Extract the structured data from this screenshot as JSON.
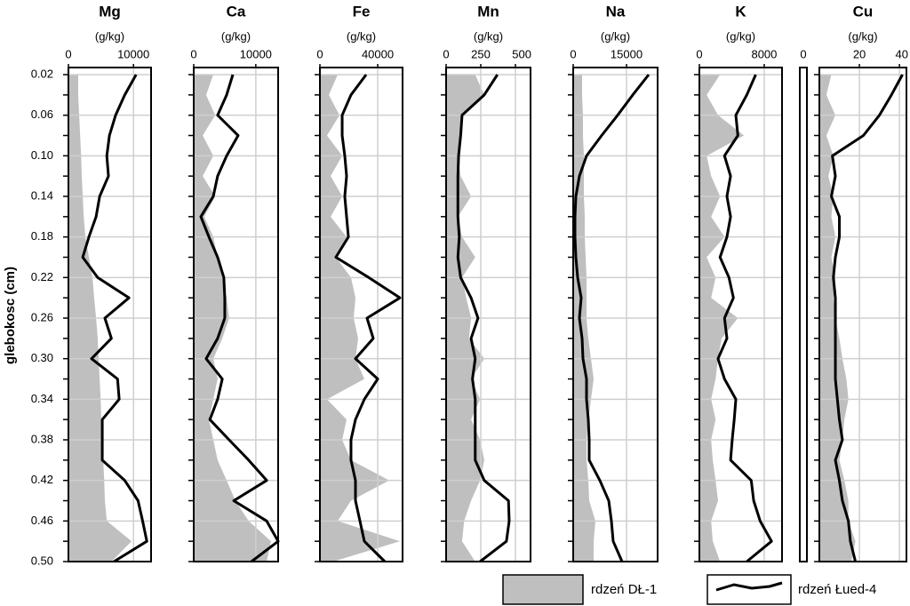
{
  "y_axis": {
    "label": "glebokosc (cm)",
    "ylim": [
      0.02,
      0.5
    ],
    "yticks": [
      0.02,
      0.06,
      {
        "value": 0.1,
        "label": "0.10"
      },
      0.14,
      0.18,
      0.22,
      0.26,
      {
        "value": 0.3,
        "label": "0.30"
      },
      0.34,
      0.38,
      0.42,
      0.46,
      {
        "value": 0.5,
        "label": "0.50"
      }
    ],
    "depths": [
      0.02,
      0.04,
      0.06,
      0.08,
      0.1,
      0.12,
      0.14,
      0.16,
      0.18,
      0.2,
      0.22,
      0.24,
      0.26,
      0.28,
      0.3,
      0.32,
      0.34,
      0.36,
      0.38,
      0.4,
      0.42,
      0.44,
      0.46,
      0.48,
      0.5
    ],
    "grid": true
  },
  "legend": [
    {
      "name": "rdzeń DŁ-1",
      "color": "#bfbfbf",
      "kind": "area"
    },
    {
      "name": "rdzeń Łued-4",
      "color": "#000000",
      "kind": "line"
    }
  ],
  "chart_data": [
    {
      "type": "line",
      "title": "Mg",
      "x_label": "(g/kg)",
      "xlim": [
        0,
        12700
      ],
      "xticks": [
        0,
        10000
      ],
      "area": [
        1500,
        1500,
        1650,
        1800,
        1950,
        2050,
        2200,
        2350,
        2600,
        3150,
        3700,
        3950,
        4250,
        4500,
        4650,
        4800,
        4950,
        5050,
        5200,
        5350,
        5500,
        5600,
        5900,
        9700,
        6600
      ],
      "line": [
        10400,
        8650,
        7250,
        6300,
        5900,
        6150,
        4800,
        4250,
        3150,
        2200,
        4500,
        9300,
        5600,
        6600,
        3550,
        7550,
        7800,
        5200,
        5200,
        5200,
        8650,
        10700,
        11400,
        12050,
        7000
      ]
    },
    {
      "type": "line",
      "title": "Ca",
      "x_label": "(g/kg)",
      "xlim": [
        0,
        13600
      ],
      "xticks": [
        0,
        10000
      ],
      "area": [
        3150,
        2000,
        3450,
        1450,
        3150,
        1450,
        3450,
        1700,
        3150,
        3850,
        4600,
        5300,
        5700,
        4600,
        3150,
        3850,
        3150,
        2450,
        3150,
        3850,
        5300,
        6700,
        8850,
        12450,
        11750
      ],
      "line": [
        6300,
        5300,
        3850,
        7150,
        5300,
        3850,
        3150,
        1150,
        2450,
        3850,
        4850,
        5000,
        5000,
        3850,
        2000,
        4600,
        3850,
        2600,
        5700,
        8850,
        11750,
        6450,
        11750,
        13600,
        9300
      ]
    },
    {
      "type": "line",
      "title": "Fe",
      "x_label": "(g/kg)",
      "xlim": [
        0,
        57200
      ],
      "xticks": [
        0,
        40000
      ],
      "area": [
        12300,
        6150,
        13550,
        4900,
        15400,
        7400,
        15400,
        7400,
        18450,
        11050,
        21500,
        24600,
        23350,
        26450,
        24600,
        30750,
        4900,
        18450,
        15400,
        21500,
        47950,
        21500,
        12300,
        55350,
        9200
      ],
      "line": [
        32000,
        21500,
        15400,
        15400,
        17200,
        18450,
        17200,
        18450,
        19700,
        11050,
        33800,
        55350,
        32600,
        36900,
        24600,
        40000,
        30750,
        24600,
        21500,
        21500,
        24600,
        24600,
        27700,
        30750,
        44900
      ]
    },
    {
      "type": "line",
      "title": "Mn",
      "x_label": "(g/kg)",
      "xlim": [
        0,
        609
      ],
      "xticks": [
        0,
        250,
        500
      ],
      "area": [
        210,
        275,
        115,
        105,
        85,
        105,
        180,
        85,
        115,
        210,
        115,
        145,
        180,
        165,
        275,
        180,
        245,
        180,
        245,
        275,
        245,
        180,
        130,
        115,
        210
      ],
      "line": [
        370,
        275,
        115,
        105,
        90,
        85,
        85,
        85,
        95,
        85,
        105,
        180,
        230,
        180,
        210,
        190,
        210,
        210,
        210,
        210,
        275,
        450,
        455,
        435,
        245
      ]
    },
    {
      "type": "line",
      "title": "Na",
      "x_label": "(g/kg)",
      "xlim": [
        0,
        23750
      ],
      "xticks": [
        0,
        15000
      ],
      "area": [
        2500,
        2500,
        2750,
        2750,
        3000,
        3000,
        3000,
        3250,
        3250,
        3500,
        3750,
        3750,
        3750,
        4250,
        5000,
        5750,
        5000,
        4250,
        3750,
        3750,
        4250,
        4500,
        6250,
        5750,
        5750
      ],
      "line": [
        21250,
        16750,
        12500,
        8000,
        3750,
        1750,
        750,
        500,
        500,
        750,
        1250,
        2250,
        1750,
        2500,
        2750,
        3750,
        3750,
        4250,
        4500,
        4500,
        7500,
        10000,
        10750,
        11250,
        13750
      ]
    },
    {
      "type": "line",
      "title": "K",
      "x_label": "(g/kg)",
      "xlim": [
        0,
        10200
      ],
      "xticks": [
        0,
        8000
      ],
      "area": [
        2550,
        900,
        2300,
        5500,
        900,
        1450,
        2550,
        1450,
        3100,
        900,
        2000,
        1450,
        4750,
        2750,
        2300,
        2000,
        1450,
        2000,
        1450,
        1650,
        2000,
        2300,
        1450,
        1650,
        2550
      ],
      "line": [
        6950,
        5850,
        4500,
        4750,
        3100,
        3850,
        3400,
        3850,
        3400,
        2550,
        3650,
        4200,
        3100,
        3400,
        2300,
        3100,
        4500,
        4300,
        4050,
        3850,
        6400,
        6700,
        7500,
        8900,
        5850
      ]
    },
    {
      "type": "line",
      "title": "Cu",
      "x_label": "(g/kg)",
      "xlim": [
        0,
        43.5
      ],
      "xticks": [
        0,
        20,
        40
      ],
      "axis_break": true,
      "area": [
        6,
        3.5,
        8,
        3.5,
        7,
        4.5,
        7,
        6,
        8,
        6,
        8,
        7,
        8,
        10,
        11.5,
        13.5,
        14.5,
        12.5,
        11.5,
        10,
        12.5,
        14.5,
        14.5,
        18,
        16
      ],
      "line": [
        41.5,
        36,
        30,
        22,
        6.5,
        8,
        6,
        10,
        10,
        8,
        7,
        8,
        8,
        8,
        8,
        8,
        9,
        10,
        11.5,
        8,
        10,
        11.5,
        14.5,
        15.5,
        18
      ]
    }
  ]
}
